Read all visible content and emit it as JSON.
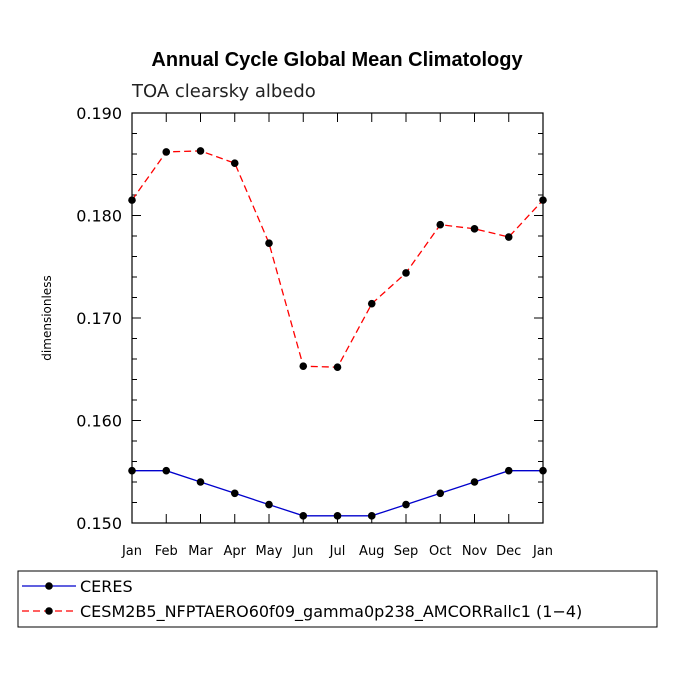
{
  "chart_data": {
    "type": "line",
    "title": "Annual Cycle Global Mean Climatology",
    "subtitle": "TOA clearsky albedo",
    "xlabel": "",
    "ylabel": "dimensionless",
    "categories": [
      "Jan",
      "Feb",
      "Mar",
      "Apr",
      "May",
      "Jun",
      "Jul",
      "Aug",
      "Sep",
      "Oct",
      "Nov",
      "Dec",
      "Jan"
    ],
    "ylim": [
      0.15,
      0.19
    ],
    "y_ticks": [
      "0.150",
      "0.160",
      "0.170",
      "0.180",
      "0.190"
    ],
    "grid": false,
    "legend_position": "bottom-left",
    "series": [
      {
        "name": "CERES",
        "color": "#0000cc",
        "line_style": "solid",
        "values": [
          0.1551,
          0.1551,
          0.154,
          0.1529,
          0.1518,
          0.1507,
          0.1507,
          0.1507,
          0.1518,
          0.1529,
          0.154,
          0.1551,
          0.1551
        ]
      },
      {
        "name": "CESM2B5_NFPTAERO60f09_gamma0p238_AMCORRallc1 (1−4)",
        "color": "#ff0000",
        "line_style": "dashed",
        "values": [
          0.1815,
          0.1862,
          0.1863,
          0.1851,
          0.1773,
          0.1653,
          0.1652,
          0.1714,
          0.1744,
          0.1791,
          0.1787,
          0.1779,
          0.1815
        ]
      }
    ]
  }
}
